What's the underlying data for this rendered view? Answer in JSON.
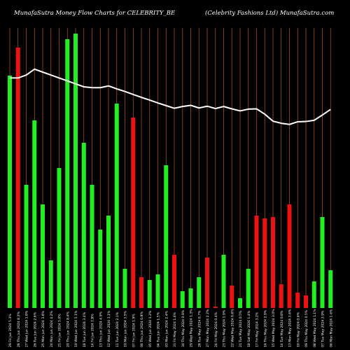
{
  "header": {
    "left": "MunafaSutra  Money Flow  Charts for CELEBRITY_BE",
    "right": "(Celebrity Fashions Ltd) MunafaSutra.com"
  },
  "colors": {
    "background": "#000000",
    "grid": "#a0522d",
    "up": "#22ee22",
    "down": "#ee1111",
    "line": "#ffffff",
    "text": "#ffffff"
  },
  "chart_data": {
    "type": "bar",
    "grid": true,
    "bar_ylim": [
      0,
      100
    ],
    "line_ylim": [
      0,
      100
    ],
    "categories": [
      "29 Fri Jun 2024 5.3%",
      "28 Thu Jun 2024 8.2%",
      "27 Wed Jun 2024 1.8%",
      "26 Tue Jun 2024 2.6%",
      "25 Mon Jun 2024 3.8%",
      "24 Mon Jun 2024 4.2%",
      "21 Fri Jun 2024 5.0%",
      "20 Thu Jun 2024 8.4%",
      "19 Wed Jun 2024 5.1%",
      "18 Tue Jun 2024 3.4%",
      "14 Fri Jun 2024 2.8%",
      "13 Thu Jun 2024 4.9%",
      "12 Wed Jun 2024 3.1%",
      "11 Tue Jun 2024 2.1%",
      "10 Mon Jun 2024 3.5%",
      "07 Fri Jun 2024 1.9%",
      "06 Thu Jun 2024 0.8%",
      "05 Wed Jun 2024 1.2%",
      "04 Tue Jun 2024 1.5%",
      "03 Mon Jun 2024 2.4%",
      "31 Fri May 2024 1.6%",
      "30 Thu May 2024 0.9%",
      "29 Wed May 2024 1.3%",
      "28 Tue May 2024 0.7%",
      "27 Mon May 2024 2.2%",
      "24 Fri May 2024 0.4%",
      "23 Thu May 2024 1.9%",
      "22 Wed May 2024 0.6%",
      "21 Tue May 2024 0.5%",
      "18 Sat May 2024 1.4%",
      "17 Fri May 2024 3.2%",
      "16 Thu May 2024 2.9%",
      "15 Wed May 2024 3.0%",
      "14 Tue May 2024 0.8%",
      "13 Mon May 2024 3.6%",
      "10 Fri May 2024 0.6%",
      "09 Thu May 2024 0.5%",
      "08 Wed May 2024 1.1%",
      "07 Tue May 2024 3.9%",
      "06 Mon May 2024 1.6%"
    ],
    "bars": [
      {
        "value": 83,
        "dir": "up"
      },
      {
        "value": 93,
        "dir": "down"
      },
      {
        "value": 44,
        "dir": "up"
      },
      {
        "value": 67,
        "dir": "up"
      },
      {
        "value": 37,
        "dir": "up"
      },
      {
        "value": 17,
        "dir": "up"
      },
      {
        "value": 50,
        "dir": "up"
      },
      {
        "value": 96,
        "dir": "up"
      },
      {
        "value": 98,
        "dir": "up"
      },
      {
        "value": 59,
        "dir": "up"
      },
      {
        "value": 44,
        "dir": "up"
      },
      {
        "value": 28,
        "dir": "up"
      },
      {
        "value": 33,
        "dir": "up"
      },
      {
        "value": 73,
        "dir": "up"
      },
      {
        "value": 14,
        "dir": "up"
      },
      {
        "value": 68,
        "dir": "down"
      },
      {
        "value": 11,
        "dir": "down"
      },
      {
        "value": 10,
        "dir": "up"
      },
      {
        "value": 12,
        "dir": "up"
      },
      {
        "value": 51,
        "dir": "up"
      },
      {
        "value": 19,
        "dir": "down"
      },
      {
        "value": 6,
        "dir": "up"
      },
      {
        "value": 7,
        "dir": "up"
      },
      {
        "value": 11,
        "dir": "up"
      },
      {
        "value": 18,
        "dir": "down"
      },
      {
        "value": 0.5,
        "dir": "down"
      },
      {
        "value": 19,
        "dir": "up"
      },
      {
        "value": 8,
        "dir": "down"
      },
      {
        "value": 3.5,
        "dir": "up"
      },
      {
        "value": 14,
        "dir": "up"
      },
      {
        "value": 33,
        "dir": "down"
      },
      {
        "value": 32,
        "dir": "down"
      },
      {
        "value": 32.5,
        "dir": "down"
      },
      {
        "value": 8.5,
        "dir": "down"
      },
      {
        "value": 37,
        "dir": "down"
      },
      {
        "value": 5.5,
        "dir": "down"
      },
      {
        "value": 4.5,
        "dir": "down"
      },
      {
        "value": 9.5,
        "dir": "up"
      },
      {
        "value": 32.5,
        "dir": "up"
      },
      {
        "value": 13.5,
        "dir": "up"
      }
    ],
    "line": [
      83,
      83,
      84,
      86,
      85,
      84,
      83,
      82,
      81,
      80,
      79.7,
      79.7,
      80.3,
      79.3,
      78.4,
      77.4,
      76.4,
      75.5,
      74.5,
      73.6,
      72.7,
      73.3,
      73.7,
      72.8,
      73.4,
      72.6,
      73.3,
      72.5,
      71.8,
      72.4,
      72.5,
      70.7,
      68.3,
      67.6,
      67.2,
      68.1,
      68.2,
      68.6,
      70.4,
      72.3
    ]
  }
}
